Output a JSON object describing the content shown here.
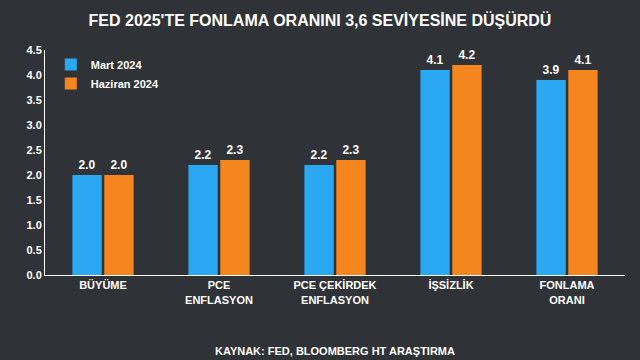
{
  "chart_data": {
    "type": "bar",
    "title": "FED 2025'TE FONLAMA ORANINI 3,6 SEVİYESİNE DÜŞÜRDÜ",
    "categories": [
      "BÜYÜME",
      "PCE ENFLASYON",
      "PCE ÇEKİRDEK ENFLASYON",
      "İŞSİZLİK",
      "FONLAMA ORANI"
    ],
    "series": [
      {
        "name": "Mart 2024",
        "color": "#2aa8f2",
        "values": [
          2.0,
          2.2,
          2.2,
          4.1,
          3.9
        ],
        "value_labels": [
          "2.0",
          "2.2",
          "2.2",
          "4.1",
          "3.9"
        ]
      },
      {
        "name": "Haziran 2024",
        "color": "#f5851f",
        "values": [
          2.0,
          2.3,
          2.3,
          4.2,
          4.1
        ],
        "value_labels": [
          "2.0",
          "2.3",
          "2.3",
          "4.2",
          "4.1"
        ]
      }
    ],
    "ylim": [
      0,
      4.5
    ],
    "yticks": [
      {
        "value": 0,
        "label": "0.0"
      },
      0.5,
      {
        "value": 1,
        "label": "1.0"
      },
      1.5,
      {
        "value": 2,
        "label": "2.0"
      },
      2.5,
      {
        "value": 3,
        "label": "3.0"
      },
      3.5,
      {
        "value": 4,
        "label": "4.0"
      },
      4.5
    ],
    "grid": false,
    "legend": "upper left",
    "data_labels": true,
    "annotations": [
      "KAYNAK: FED, BLOOMBERG HT ARAŞTIRMA"
    ]
  }
}
